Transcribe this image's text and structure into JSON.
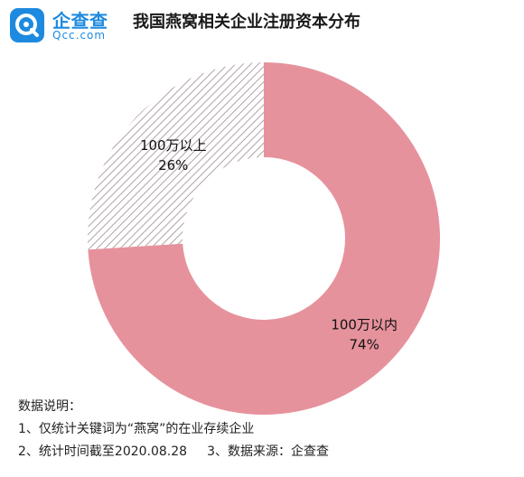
{
  "header": {
    "logo_cn": "企查查",
    "logo_en": "Qcc.com",
    "title": "我国燕窝相关企业注册资本分布"
  },
  "chart_data": {
    "type": "pie",
    "donut": true,
    "title": "我国燕窝相关企业注册资本分布",
    "slices": [
      {
        "name": "100万以内",
        "value": 74,
        "label": "74%",
        "color": "#e6929c",
        "pattern": "solid"
      },
      {
        "name": "100万以上",
        "value": 26,
        "label": "26%",
        "color": "#9c8a8c",
        "pattern": "hatched"
      }
    ]
  },
  "notes": {
    "heading": "数据说明：",
    "line1": "1、仅统计关键词为“燕窝”的在业存续企业",
    "line2a": "2、统计时间截至2020.08.28",
    "line2b": "3、数据来源：企查查"
  },
  "colors": {
    "brand": "#1d8ae0",
    "slice_main": "#e6929c",
    "hatch": "#9c8a8c"
  }
}
